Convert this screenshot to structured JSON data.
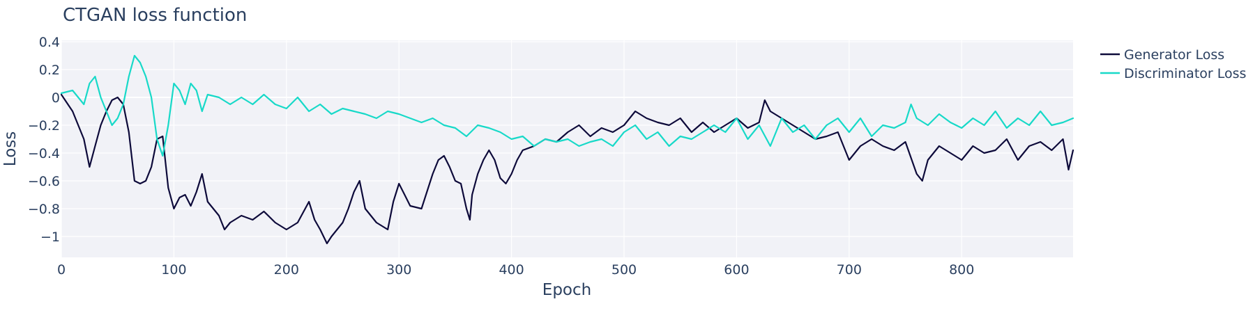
{
  "chart_data": {
    "type": "line",
    "title": "CTGAN loss function",
    "xlabel": "Epoch",
    "ylabel": "Loss",
    "xlim": [
      0,
      899
    ],
    "ylim": [
      -1.15,
      0.41
    ],
    "xticks": [
      0,
      100,
      200,
      300,
      400,
      500,
      600,
      700,
      800
    ],
    "xtick_labels": [
      "0",
      "100",
      "200",
      "300",
      "400",
      "500",
      "600",
      "700",
      "800"
    ],
    "yticks": [
      0.4,
      0.2,
      0,
      -0.2,
      -0.4,
      -0.6,
      -0.8,
      -1
    ],
    "ytick_labels": [
      "0.4",
      "0.2",
      "0",
      "−0.2",
      "−0.4",
      "−0.6",
      "−0.8",
      "−1"
    ],
    "grid": true,
    "legend_position": "top-right",
    "series": [
      {
        "name": "Generator Loss",
        "color": "#0d0a3a",
        "x": [
          0,
          10,
          20,
          25,
          30,
          35,
          40,
          45,
          50,
          55,
          60,
          65,
          70,
          75,
          80,
          85,
          90,
          95,
          100,
          105,
          110,
          115,
          120,
          125,
          130,
          135,
          140,
          145,
          150,
          160,
          170,
          180,
          190,
          200,
          210,
          220,
          225,
          230,
          236,
          240,
          250,
          255,
          260,
          265,
          270,
          280,
          290,
          295,
          300,
          305,
          310,
          320,
          330,
          335,
          340,
          345,
          350,
          355,
          360,
          363,
          365,
          370,
          375,
          380,
          385,
          390,
          395,
          400,
          405,
          410,
          420,
          430,
          440,
          450,
          460,
          470,
          480,
          490,
          500,
          510,
          520,
          530,
          540,
          550,
          560,
          570,
          580,
          590,
          600,
          610,
          620,
          625,
          630,
          640,
          650,
          660,
          670,
          680,
          690,
          700,
          710,
          720,
          730,
          740,
          750,
          760,
          765,
          770,
          780,
          790,
          800,
          810,
          820,
          830,
          840,
          850,
          860,
          870,
          880,
          890,
          895,
          899
        ],
        "values": [
          0.02,
          -0.1,
          -0.3,
          -0.5,
          -0.35,
          -0.2,
          -0.1,
          -0.02,
          0.0,
          -0.05,
          -0.25,
          -0.6,
          -0.62,
          -0.6,
          -0.5,
          -0.3,
          -0.28,
          -0.65,
          -0.8,
          -0.72,
          -0.7,
          -0.78,
          -0.68,
          -0.55,
          -0.75,
          -0.8,
          -0.85,
          -0.95,
          -0.9,
          -0.85,
          -0.88,
          -0.82,
          -0.9,
          -0.95,
          -0.9,
          -0.75,
          -0.88,
          -0.95,
          -1.05,
          -1.0,
          -0.9,
          -0.8,
          -0.68,
          -0.6,
          -0.8,
          -0.9,
          -0.95,
          -0.75,
          -0.62,
          -0.7,
          -0.78,
          -0.8,
          -0.55,
          -0.45,
          -0.42,
          -0.5,
          -0.6,
          -0.62,
          -0.8,
          -0.88,
          -0.7,
          -0.55,
          -0.45,
          -0.38,
          -0.45,
          -0.58,
          -0.62,
          -0.55,
          -0.45,
          -0.38,
          -0.35,
          -0.3,
          -0.32,
          -0.25,
          -0.2,
          -0.28,
          -0.22,
          -0.25,
          -0.2,
          -0.1,
          -0.15,
          -0.18,
          -0.2,
          -0.15,
          -0.25,
          -0.18,
          -0.25,
          -0.2,
          -0.15,
          -0.22,
          -0.18,
          -0.02,
          -0.1,
          -0.15,
          -0.2,
          -0.25,
          -0.3,
          -0.28,
          -0.25,
          -0.45,
          -0.35,
          -0.3,
          -0.35,
          -0.38,
          -0.32,
          -0.55,
          -0.6,
          -0.45,
          -0.35,
          -0.4,
          -0.45,
          -0.35,
          -0.4,
          -0.38,
          -0.3,
          -0.45,
          -0.35,
          -0.32,
          -0.38,
          -0.3,
          -0.52,
          -0.38
        ]
      },
      {
        "name": "Discriminator Loss",
        "color": "#17d9c8",
        "x": [
          0,
          10,
          15,
          20,
          25,
          30,
          35,
          40,
          45,
          50,
          55,
          60,
          65,
          70,
          75,
          80,
          85,
          90,
          95,
          100,
          105,
          110,
          115,
          120,
          125,
          130,
          140,
          150,
          160,
          170,
          180,
          190,
          200,
          210,
          220,
          230,
          240,
          250,
          260,
          270,
          280,
          290,
          300,
          310,
          320,
          330,
          340,
          350,
          360,
          370,
          380,
          390,
          400,
          410,
          420,
          430,
          440,
          450,
          460,
          470,
          480,
          490,
          500,
          510,
          520,
          530,
          540,
          550,
          560,
          570,
          580,
          590,
          600,
          610,
          620,
          630,
          640,
          650,
          660,
          670,
          680,
          690,
          700,
          710,
          720,
          730,
          740,
          750,
          755,
          760,
          770,
          780,
          790,
          800,
          810,
          820,
          830,
          840,
          850,
          860,
          870,
          880,
          890,
          899
        ],
        "values": [
          0.03,
          0.05,
          0.0,
          -0.05,
          0.1,
          0.15,
          0.0,
          -0.1,
          -0.2,
          -0.15,
          -0.05,
          0.15,
          0.3,
          0.25,
          0.15,
          0.0,
          -0.3,
          -0.42,
          -0.2,
          0.1,
          0.05,
          -0.05,
          0.1,
          0.05,
          -0.1,
          0.02,
          0.0,
          -0.05,
          0.0,
          -0.05,
          0.02,
          -0.05,
          -0.08,
          0.0,
          -0.1,
          -0.05,
          -0.12,
          -0.08,
          -0.1,
          -0.12,
          -0.15,
          -0.1,
          -0.12,
          -0.15,
          -0.18,
          -0.15,
          -0.2,
          -0.22,
          -0.28,
          -0.2,
          -0.22,
          -0.25,
          -0.3,
          -0.28,
          -0.35,
          -0.3,
          -0.32,
          -0.3,
          -0.35,
          -0.32,
          -0.3,
          -0.35,
          -0.25,
          -0.2,
          -0.3,
          -0.25,
          -0.35,
          -0.28,
          -0.3,
          -0.25,
          -0.2,
          -0.25,
          -0.15,
          -0.3,
          -0.2,
          -0.35,
          -0.15,
          -0.25,
          -0.2,
          -0.3,
          -0.2,
          -0.15,
          -0.25,
          -0.15,
          -0.28,
          -0.2,
          -0.22,
          -0.18,
          -0.05,
          -0.15,
          -0.2,
          -0.12,
          -0.18,
          -0.22,
          -0.15,
          -0.2,
          -0.1,
          -0.22,
          -0.15,
          -0.2,
          -0.1,
          -0.2,
          -0.18,
          -0.15
        ]
      }
    ]
  }
}
